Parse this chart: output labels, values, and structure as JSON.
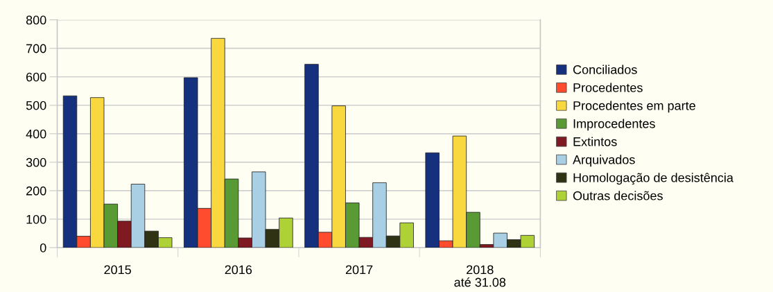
{
  "chart_data": {
    "type": "bar",
    "categories": [
      "2015",
      "2016",
      "2017",
      "2018\naté 31.08"
    ],
    "series": [
      {
        "name": "Conciliados",
        "color": "#15317e",
        "values": [
          533,
          597,
          644,
          333
        ]
      },
      {
        "name": "Procedentes",
        "color": "#ff4b2e",
        "values": [
          40,
          138,
          54,
          24
        ]
      },
      {
        "name": "Procedentes em parte",
        "color": "#f9d83f",
        "values": [
          527,
          735,
          498,
          392
        ]
      },
      {
        "name": "Improcedentes",
        "color": "#5a9a34",
        "values": [
          153,
          241,
          157,
          124
        ]
      },
      {
        "name": "Extintos",
        "color": "#7f1a22",
        "values": [
          93,
          34,
          36,
          11
        ]
      },
      {
        "name": "Arquivados",
        "color": "#a8cfe3",
        "values": [
          223,
          266,
          228,
          51
        ]
      },
      {
        "name": "Homologação de desistência",
        "color": "#303214",
        "values": [
          58,
          64,
          41,
          28
        ]
      },
      {
        "name": "Outras decisões",
        "color": "#aed135",
        "values": [
          35,
          104,
          87,
          43
        ]
      }
    ],
    "ylim": [
      0,
      800
    ],
    "yticks": [
      0,
      100,
      200,
      300,
      400,
      500,
      600,
      700,
      800
    ],
    "grid": "y",
    "legend": "right"
  }
}
